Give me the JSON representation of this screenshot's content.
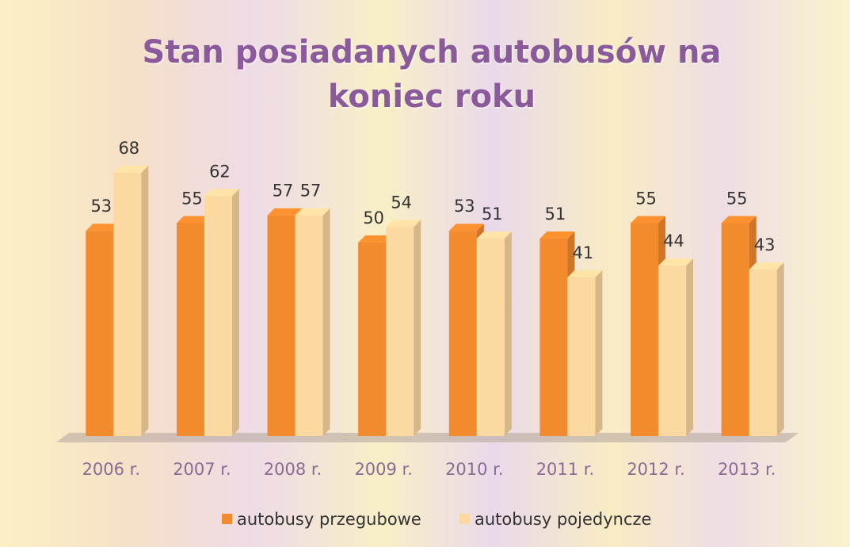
{
  "chart_data": {
    "type": "bar3d",
    "title": "Stan posiadanych autobusów na koniec roku",
    "categories": [
      "2006 r.",
      "2007 r.",
      "2008 r.",
      "2009 r.",
      "2010 r.",
      "2011 r.",
      "2012 r.",
      "2013 r."
    ],
    "series": [
      {
        "name": "autobusy przegubowe",
        "color": "#f28a2e",
        "values": [
          53,
          55,
          57,
          50,
          53,
          51,
          55,
          55
        ]
      },
      {
        "name": "autobusy pojedyncze",
        "color": "#fcd9a0",
        "values": [
          68,
          62,
          57,
          54,
          51,
          41,
          44,
          43
        ]
      }
    ],
    "legend": "bottom"
  }
}
